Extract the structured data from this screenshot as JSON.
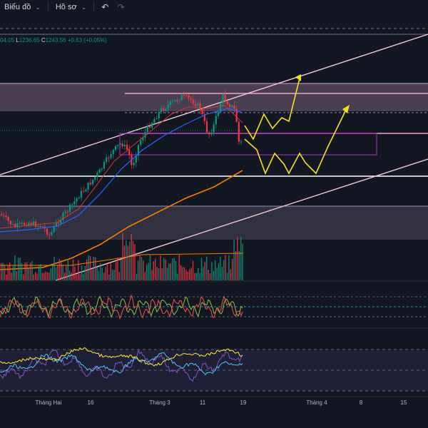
{
  "toolbar": {
    "chart_menu_label": "Biểu đồ",
    "profile_menu_label": "Hồ sơ",
    "undo_icon": "undo-icon",
    "redo_icon": "redo-icon"
  },
  "legend": {
    "open_partial": "04.05",
    "low_key": "L",
    "low_value": "1236.65",
    "close_key": "C",
    "close_value": "1243.56",
    "change": "+0.63 (+0.05%)"
  },
  "x_axis": {
    "labels": [
      "Tháng Hai",
      "16",
      "Tháng 3",
      "11",
      "19",
      "Tháng 4",
      "8",
      "15"
    ]
  },
  "colors": {
    "background": "#131722",
    "up": "#089981",
    "down": "#f23645",
    "zone": "#d6a8c8",
    "projection": "#f5e027",
    "ma_orange": "#f57c00",
    "ma_blue": "#2962ff",
    "ma_red": "#e53935",
    "channel": "#f2c9d8"
  }
}
